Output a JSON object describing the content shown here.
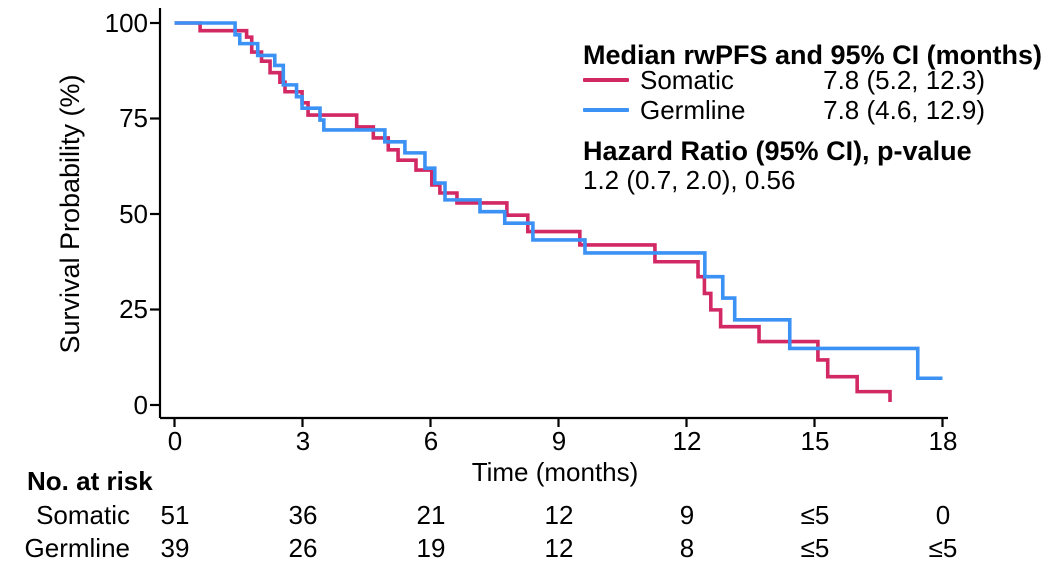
{
  "figure": {
    "background": "#ffffff",
    "axis_color": "#000000"
  },
  "y_axis": {
    "title": "Survival Probability (%)",
    "tick_labels": [
      "100",
      "75",
      "50",
      "25",
      "0"
    ]
  },
  "x_axis": {
    "title": "Time (months)",
    "tick_labels": [
      "0",
      "3",
      "6",
      "9",
      "12",
      "15",
      "18"
    ]
  },
  "legend": {
    "title": "Median rwPFS and 95% CI (months)",
    "entries": [
      {
        "label": "Somatic",
        "value": "7.8 (5.2, 12.3)",
        "color": "#D22864"
      },
      {
        "label": "Germline",
        "value": "7.8 (4.6, 12.9)",
        "color": "#3C91F5"
      }
    ],
    "hr_title": "Hazard Ratio (95% CI), p-value",
    "hr_value": "1.2 (0.7, 2.0), 0.56"
  },
  "risk_table": {
    "header": "No. at risk",
    "rows": [
      {
        "label": "Somatic",
        "values": [
          "51",
          "36",
          "21",
          "12",
          "9",
          "≤5",
          "0"
        ]
      },
      {
        "label": "Germline",
        "values": [
          "39",
          "26",
          "19",
          "12",
          "8",
          "≤5",
          "≤5"
        ]
      }
    ]
  },
  "chart_data": {
    "type": "line",
    "subtype": "kaplan_meier_step",
    "title": "",
    "xlabel": "Time (months)",
    "ylabel": "Survival Probability (%)",
    "xlim": [
      0,
      18
    ],
    "ylim": [
      0,
      100
    ],
    "x_ticks": [
      0,
      3,
      6,
      9,
      12,
      15,
      18
    ],
    "y_ticks": [
      0,
      25,
      50,
      75,
      100
    ],
    "grid": false,
    "legend_position": "top-right",
    "hazard_ratio": "1.2 (0.7, 2.0), 0.56",
    "series": [
      {
        "name": "Somatic",
        "color": "#D22864",
        "median_ci": "7.8 (5.2, 12.3)",
        "steps": [
          [
            0,
            100
          ],
          [
            0.6,
            98
          ],
          [
            1.69,
            96.3
          ],
          [
            1.81,
            92.4
          ],
          [
            2.04,
            90
          ],
          [
            2.24,
            87
          ],
          [
            2.47,
            84.5
          ],
          [
            2.59,
            82
          ],
          [
            2.99,
            79.1
          ],
          [
            3.13,
            75.9
          ],
          [
            4.27,
            72.8
          ],
          [
            4.66,
            69.9
          ],
          [
            5.01,
            66.8
          ],
          [
            5.24,
            64.1
          ],
          [
            5.66,
            61.5
          ],
          [
            6.03,
            57.6
          ],
          [
            6.22,
            55.5
          ],
          [
            6.62,
            52.9
          ],
          [
            7.79,
            49.7
          ],
          [
            8.28,
            45.4
          ],
          [
            9.5,
            41.9
          ],
          [
            11.26,
            37.5
          ],
          [
            12.27,
            33.6
          ],
          [
            12.42,
            29.2
          ],
          [
            12.57,
            24.9
          ],
          [
            12.8,
            20.5
          ],
          [
            13.7,
            16.6
          ],
          [
            15.08,
            11.8
          ],
          [
            15.31,
            7.4
          ],
          [
            16.0,
            3.5
          ],
          [
            16.77,
            0.8
          ]
        ]
      },
      {
        "name": "Germline",
        "color": "#3C91F5",
        "median_ci": "7.8 (4.6, 12.9)",
        "steps": [
          [
            0,
            100
          ],
          [
            1.42,
            96.9
          ],
          [
            1.53,
            94.6
          ],
          [
            1.95,
            91.5
          ],
          [
            2.35,
            88.9
          ],
          [
            2.55,
            83.8
          ],
          [
            2.86,
            80.7
          ],
          [
            2.99,
            77.7
          ],
          [
            3.41,
            74.6
          ],
          [
            3.5,
            72
          ],
          [
            4.93,
            68.9
          ],
          [
            5.4,
            66
          ],
          [
            5.87,
            62
          ],
          [
            6.1,
            58.1
          ],
          [
            6.34,
            53.7
          ],
          [
            7.16,
            50.6
          ],
          [
            7.74,
            47.6
          ],
          [
            8.4,
            43.2
          ],
          [
            9.62,
            39.8
          ],
          [
            12.43,
            33.6
          ],
          [
            12.85,
            28
          ],
          [
            13.13,
            22.3
          ],
          [
            14.42,
            14.8
          ],
          [
            17.42,
            7
          ],
          [
            18,
            7
          ]
        ]
      }
    ],
    "risk_table": {
      "times": [
        0,
        3,
        6,
        9,
        12,
        15,
        18
      ],
      "Somatic": [
        "51",
        "36",
        "21",
        "12",
        "9",
        "≤5",
        "0"
      ],
      "Germline": [
        "39",
        "26",
        "19",
        "12",
        "8",
        "≤5",
        "≤5"
      ]
    }
  }
}
